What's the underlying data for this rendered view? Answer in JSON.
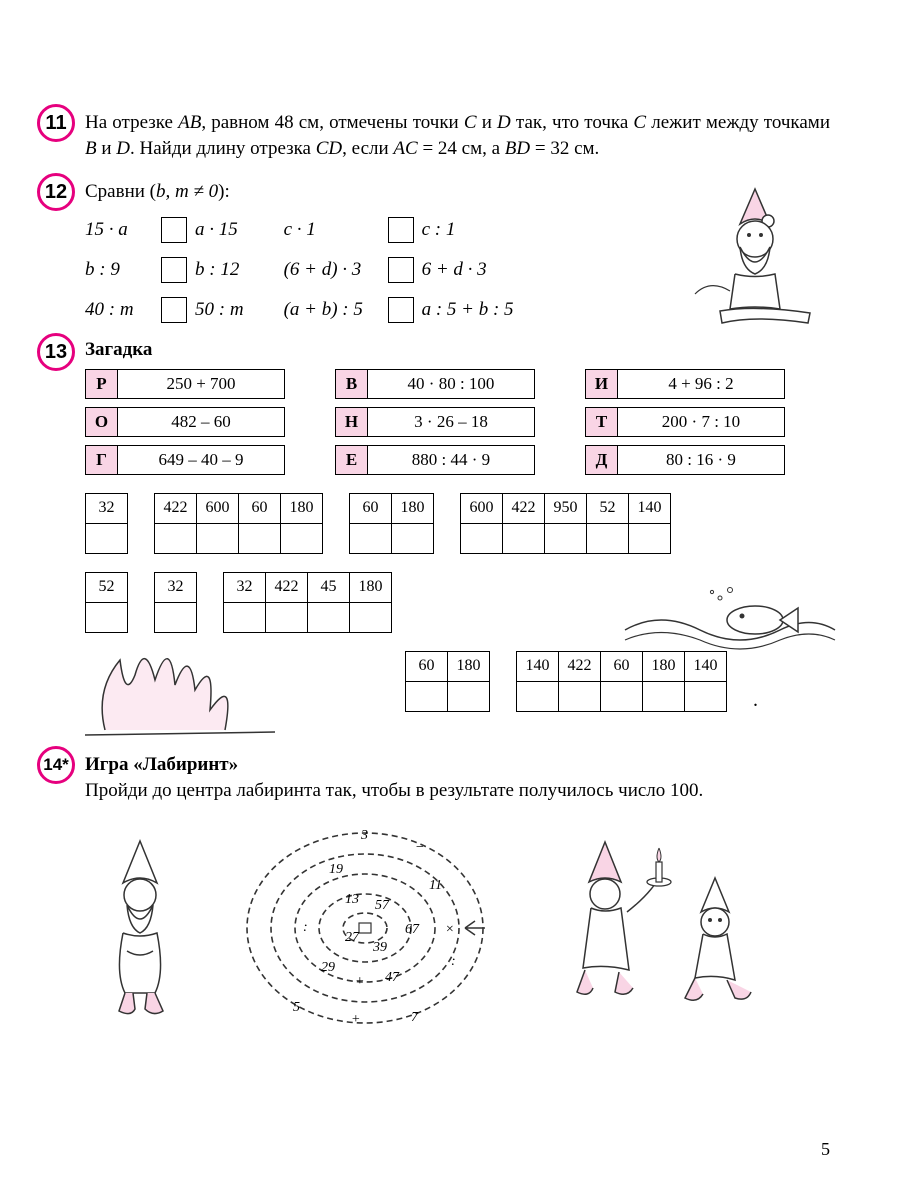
{
  "page_number": "5",
  "accent_color": "#e6007e",
  "riddle_bg": "#f9d5e5",
  "task11": {
    "num": "11",
    "text_parts": [
      "На отрезке ",
      "AB",
      ", равном 48 см, отмечены точки ",
      "C",
      " и ",
      "D",
      " так, что точка ",
      "C",
      " лежит между точками ",
      "B",
      " и ",
      "D",
      ". Найди длину отрезка ",
      "CD",
      ", если ",
      "AC",
      " = 24 см, а ",
      "BD",
      " = 32 см."
    ]
  },
  "task12": {
    "num": "12",
    "title_pre": "Сравни (",
    "title_mid": "b, m ≠ 0",
    "title_post": "):",
    "col1": [
      {
        "l": "15 · a",
        "r": "a · 15"
      },
      {
        "l": "b : 9",
        "r": "b : 12"
      },
      {
        "l": "40 : m",
        "r": "50 : m"
      }
    ],
    "col2": [
      {
        "l": "c · 1",
        "r": "c : 1"
      },
      {
        "l": "(6 + d) · 3",
        "r": "6 + d · 3"
      },
      {
        "l": "(a + b) : 5",
        "r": "a : 5 + b : 5"
      }
    ]
  },
  "task13": {
    "num": "13",
    "title": "Загадка",
    "items": [
      [
        {
          "L": "Р",
          "E": "250 + 700"
        },
        {
          "L": "В",
          "E": "40 · 80 : 100"
        },
        {
          "L": "И",
          "E": "4 + 96 : 2"
        }
      ],
      [
        {
          "L": "О",
          "E": "482 – 60"
        },
        {
          "L": "Н",
          "E": "3 · 26 – 18"
        },
        {
          "L": "Т",
          "E": "200 · 7 : 10"
        }
      ],
      [
        {
          "L": "Г",
          "E": "649 – 40 – 9"
        },
        {
          "L": "Е",
          "E": "880 : 44 · 9"
        },
        {
          "L": "Д",
          "E": "80 : 16 · 9"
        }
      ]
    ],
    "answer_line1": [
      [
        "32"
      ],
      [
        "422",
        "600",
        "60",
        "180"
      ],
      [
        "60",
        "180"
      ],
      [
        "600",
        "422",
        "950",
        "52",
        "140"
      ]
    ],
    "answer_line2": [
      [
        "52"
      ],
      [
        "32"
      ],
      [
        "32",
        "422",
        "45",
        "180"
      ]
    ],
    "answer_line3": [
      [
        "60",
        "180"
      ],
      [
        "140",
        "422",
        "60",
        "180",
        "140"
      ]
    ]
  },
  "task14": {
    "num": "14*",
    "title": "Игра «Лабиринт»",
    "text": "Пройди до центра лабиринта так, чтобы в результате получилось число 100.",
    "maze_numbers": [
      "3",
      "19",
      "11",
      "13",
      "57",
      "67",
      "27",
      "39",
      "29",
      "47",
      "5",
      "7"
    ],
    "maze_ops": [
      "+",
      "−",
      "·",
      ":",
      "×"
    ]
  }
}
